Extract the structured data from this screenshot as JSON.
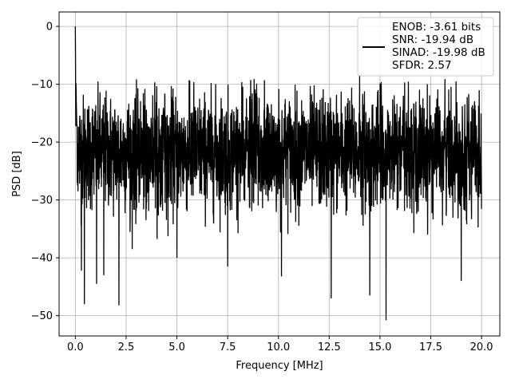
{
  "chart_data": {
    "type": "line",
    "title": "",
    "xlabel": "Frequency [MHz]",
    "ylabel": "PSD [dB]",
    "xlim": [
      -0.8,
      20.9
    ],
    "ylim": [
      -53.5,
      2.5
    ],
    "xticks": [
      0.0,
      2.5,
      5.0,
      7.5,
      10.0,
      12.5,
      15.0,
      17.5,
      20.0
    ],
    "xtick_labels": [
      "0.0",
      "2.5",
      "5.0",
      "7.5",
      "10.0",
      "12.5",
      "15.0",
      "17.5",
      "20.0"
    ],
    "yticks": [
      0,
      -10,
      -20,
      -30,
      -40,
      -50
    ],
    "ytick_labels": [
      "0",
      "−10",
      "−20",
      "−30",
      "−40",
      "−50"
    ],
    "grid": true,
    "legend_position": "top-right",
    "legend_lines": [
      "ENOB: -3.61 bits",
      "SNR: -19.94 dB",
      "SINAD: -19.98 dB",
      "SFDR: 2.57"
    ],
    "series": [
      {
        "color": "#000000",
        "x_range": [
          0.0,
          20.0
        ],
        "noise_band": [
          -27,
          -14
        ],
        "peak": {
          "x": 0.0,
          "y": 0.0
        },
        "notable_points": [
          {
            "x": 0.3,
            "y": -42.2
          },
          {
            "x": 0.45,
            "y": -48.0
          },
          {
            "x": 1.05,
            "y": -44.5
          },
          {
            "x": 1.4,
            "y": -43.0
          },
          {
            "x": 2.15,
            "y": -48.2
          },
          {
            "x": 2.8,
            "y": -38.5
          },
          {
            "x": 5.0,
            "y": -40.0
          },
          {
            "x": 7.5,
            "y": -41.5
          },
          {
            "x": 10.15,
            "y": -43.2
          },
          {
            "x": 12.6,
            "y": -47.0
          },
          {
            "x": 14.5,
            "y": -46.5
          },
          {
            "x": 15.3,
            "y": -50.8
          },
          {
            "x": 19.0,
            "y": -44.0
          },
          {
            "x": 5.6,
            "y": -9.3
          },
          {
            "x": 8.8,
            "y": -9.1
          },
          {
            "x": 14.0,
            "y": -8.3
          },
          {
            "x": 18.2,
            "y": -9.1
          }
        ]
      }
    ]
  }
}
